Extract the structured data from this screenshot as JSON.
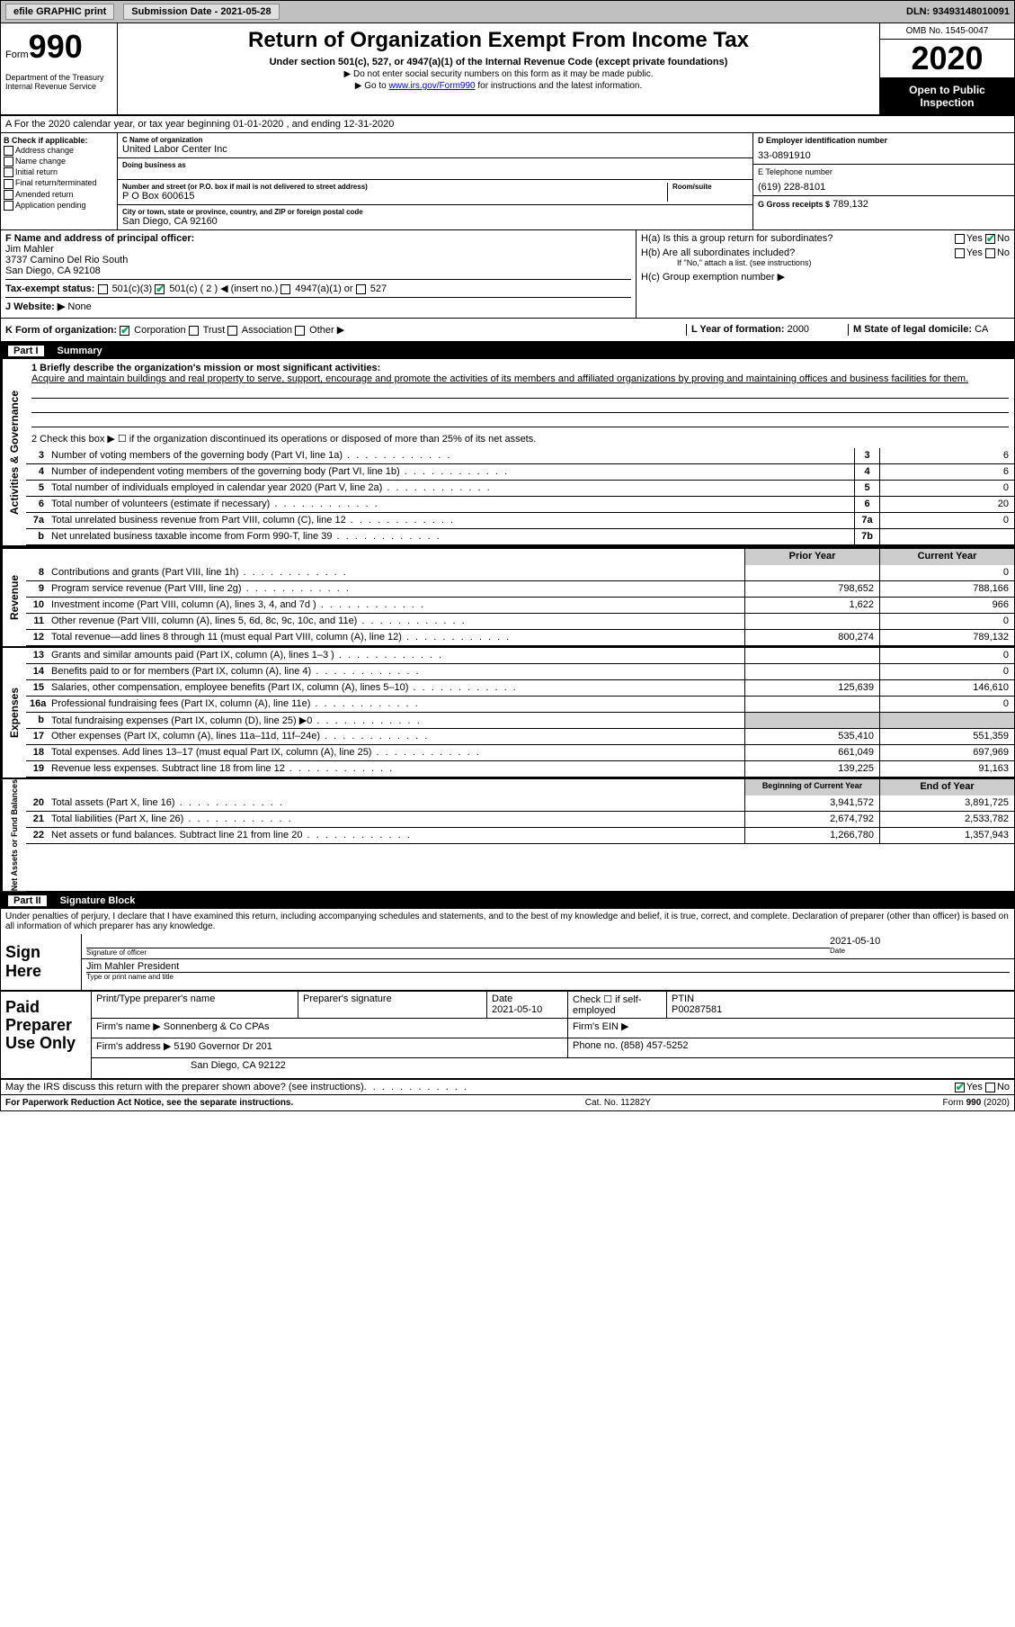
{
  "header_bar": {
    "efile": "efile GRAPHIC print",
    "sub_label": "Submission Date - 2021-05-28",
    "dln": "DLN: 93493148010091"
  },
  "title": {
    "form": "Form",
    "num": "990",
    "main": "Return of Organization Exempt From Income Tax",
    "sub": "Under section 501(c), 527, or 4947(a)(1) of the Internal Revenue Code (except private foundations)",
    "note1": "▶ Do not enter social security numbers on this form as it may be made public.",
    "note2_pre": "▶ Go to ",
    "note2_link": "www.irs.gov/Form990",
    "note2_post": " for instructions and the latest information.",
    "dept": "Department of the Treasury\nInternal Revenue Service",
    "omb": "OMB No. 1545-0047",
    "year": "2020",
    "open": "Open to Public Inspection"
  },
  "line_a": "A For the 2020 calendar year, or tax year beginning 01-01-2020    , and ending 12-31-2020",
  "sec_b": {
    "title": "B Check if applicable:",
    "opts": [
      "Address change",
      "Name change",
      "Initial return",
      "Final return/terminated",
      "Amended return",
      "Application pending"
    ]
  },
  "sec_c": {
    "name_lbl": "C Name of organization",
    "name": "United Labor Center Inc",
    "dba_lbl": "Doing business as",
    "dba": "",
    "addr_lbl": "Number and street (or P.O. box if mail is not delivered to street address)",
    "room_lbl": "Room/suite",
    "addr": "P O Box 600615",
    "city_lbl": "City or town, state or province, country, and ZIP or foreign postal code",
    "city": "San Diego, CA  92160"
  },
  "sec_d": {
    "ein_lbl": "D Employer identification number",
    "ein": "33-0891910",
    "tel_lbl": "E Telephone number",
    "tel": "(619) 228-8101",
    "gross_lbl": "G Gross receipts $",
    "gross": "789,132"
  },
  "sec_f": {
    "lbl": "F  Name and address of principal officer:",
    "name": "Jim Mahler",
    "addr1": "3737 Camino Del Rio South",
    "addr2": "San Diego, CA  92108"
  },
  "sec_h": {
    "ha": "H(a)  Is this a group return for subordinates?",
    "hb": "H(b)  Are all subordinates included?",
    "hb_note": "If \"No,\" attach a list. (see instructions)",
    "hc": "H(c)  Group exemption number ▶"
  },
  "sec_i": {
    "lbl": "Tax-exempt status:",
    "o1": "501(c)(3)",
    "o2": "501(c) ( 2 ) ◀ (insert no.)",
    "o3": "4947(a)(1) or",
    "o4": "527"
  },
  "sec_j": {
    "lbl": "J   Website: ▶",
    "val": "None"
  },
  "sec_k": "K Form of organization:",
  "k_opts": [
    "Corporation",
    "Trust",
    "Association",
    "Other ▶"
  ],
  "sec_l": {
    "lbl": "L Year of formation:",
    "val": "2000"
  },
  "sec_m": {
    "lbl": "M State of legal domicile:",
    "val": "CA"
  },
  "part1": {
    "num": "Part I",
    "title": "Summary"
  },
  "summary": {
    "q1": "1  Briefly describe the organization's mission or most significant activities:",
    "mission": "Acquire and maintain buildings and real property to serve, support, encourage and promote the activities of its members and affiliated organizations by proving and maintaining offices and business facilities for them.",
    "q2": "2   Check this box ▶ ☐  if the organization discontinued its operations or disposed of more than 25% of its net assets.",
    "rows_gov": [
      {
        "n": "3",
        "d": "Number of voting members of the governing body (Part VI, line 1a)",
        "bn": "3",
        "v": "6"
      },
      {
        "n": "4",
        "d": "Number of independent voting members of the governing body (Part VI, line 1b)",
        "bn": "4",
        "v": "6"
      },
      {
        "n": "5",
        "d": "Total number of individuals employed in calendar year 2020 (Part V, line 2a)",
        "bn": "5",
        "v": "0"
      },
      {
        "n": "6",
        "d": "Total number of volunteers (estimate if necessary)",
        "bn": "6",
        "v": "20"
      },
      {
        "n": "7a",
        "d": "Total unrelated business revenue from Part VIII, column (C), line 12",
        "bn": "7a",
        "v": "0"
      },
      {
        "n": "b",
        "d": "Net unrelated business taxable income from Form 990-T, line 39",
        "bn": "7b",
        "v": ""
      }
    ],
    "col_hdr1": "Prior Year",
    "col_hdr2": "Current Year",
    "rows_rev": [
      {
        "n": "8",
        "d": "Contributions and grants (Part VIII, line 1h)",
        "v1": "",
        "v2": "0"
      },
      {
        "n": "9",
        "d": "Program service revenue (Part VIII, line 2g)",
        "v1": "798,652",
        "v2": "788,166"
      },
      {
        "n": "10",
        "d": "Investment income (Part VIII, column (A), lines 3, 4, and 7d )",
        "v1": "1,622",
        "v2": "966"
      },
      {
        "n": "11",
        "d": "Other revenue (Part VIII, column (A), lines 5, 6d, 8c, 9c, 10c, and 11e)",
        "v1": "",
        "v2": "0"
      },
      {
        "n": "12",
        "d": "Total revenue—add lines 8 through 11 (must equal Part VIII, column (A), line 12)",
        "v1": "800,274",
        "v2": "789,132"
      }
    ],
    "rows_exp": [
      {
        "n": "13",
        "d": "Grants and similar amounts paid (Part IX, column (A), lines 1–3 )",
        "v1": "",
        "v2": "0"
      },
      {
        "n": "14",
        "d": "Benefits paid to or for members (Part IX, column (A), line 4)",
        "v1": "",
        "v2": "0"
      },
      {
        "n": "15",
        "d": "Salaries, other compensation, employee benefits (Part IX, column (A), lines 5–10)",
        "v1": "125,639",
        "v2": "146,610"
      },
      {
        "n": "16a",
        "d": "Professional fundraising fees (Part IX, column (A), line 11e)",
        "v1": "",
        "v2": "0"
      },
      {
        "n": "b",
        "d": "Total fundraising expenses (Part IX, column (D), line 25) ▶0",
        "v1": "shade",
        "v2": "shade"
      },
      {
        "n": "17",
        "d": "Other expenses (Part IX, column (A), lines 11a–11d, 11f–24e)",
        "v1": "535,410",
        "v2": "551,359"
      },
      {
        "n": "18",
        "d": "Total expenses. Add lines 13–17 (must equal Part IX, column (A), line 25)",
        "v1": "661,049",
        "v2": "697,969"
      },
      {
        "n": "19",
        "d": "Revenue less expenses. Subtract line 18 from line 12",
        "v1": "139,225",
        "v2": "91,163"
      }
    ],
    "col_hdr3": "Beginning of Current Year",
    "col_hdr4": "End of Year",
    "rows_net": [
      {
        "n": "20",
        "d": "Total assets (Part X, line 16)",
        "v1": "3,941,572",
        "v2": "3,891,725"
      },
      {
        "n": "21",
        "d": "Total liabilities (Part X, line 26)",
        "v1": "2,674,792",
        "v2": "2,533,782"
      },
      {
        "n": "22",
        "d": "Net assets or fund balances. Subtract line 21 from line 20",
        "v1": "1,266,780",
        "v2": "1,357,943"
      }
    ]
  },
  "side_labels": {
    "gov": "Activities & Governance",
    "rev": "Revenue",
    "exp": "Expenses",
    "net": "Net Assets or Fund Balances"
  },
  "part2": {
    "num": "Part II",
    "title": "Signature Block"
  },
  "sig": {
    "decl": "Under penalties of perjury, I declare that I have examined this return, including accompanying schedules and statements, and to the best of my knowledge and belief, it is true, correct, and complete. Declaration of preparer (other than officer) is based on all information of which preparer has any knowledge.",
    "sign_here": "Sign Here",
    "sig_lbl": "Signature of officer",
    "date_lbl": "Date",
    "date": "2021-05-10",
    "name": "Jim Mahler  President",
    "name_lbl": "Type or print name and title"
  },
  "paid": {
    "title": "Paid Preparer Use Only",
    "pt_name_lbl": "Print/Type preparer's name",
    "pt_sig_lbl": "Preparer's signature",
    "pt_date_lbl": "Date",
    "pt_date": "2021-05-10",
    "pt_check_lbl": "Check ☐ if self-employed",
    "ptin_lbl": "PTIN",
    "ptin": "P00287581",
    "firm_name_lbl": "Firm's name    ▶",
    "firm_name": "Sonnenberg & Co CPAs",
    "firm_ein_lbl": "Firm's EIN ▶",
    "firm_addr_lbl": "Firm's address ▶",
    "firm_addr1": "5190 Governor Dr 201",
    "firm_addr2": "San Diego, CA  92122",
    "phone_lbl": "Phone no.",
    "phone": "(858) 457-5252"
  },
  "discuss": "May the IRS discuss this return with the preparer shown above? (see instructions)",
  "footer": {
    "left": "For Paperwork Reduction Act Notice, see the separate instructions.",
    "mid": "Cat. No. 11282Y",
    "right": "Form 990 (2020)"
  },
  "colors": {
    "bg_gray": "#c0c0c0",
    "shade": "#cccccc",
    "black": "#000000",
    "link": "#0000cc"
  }
}
